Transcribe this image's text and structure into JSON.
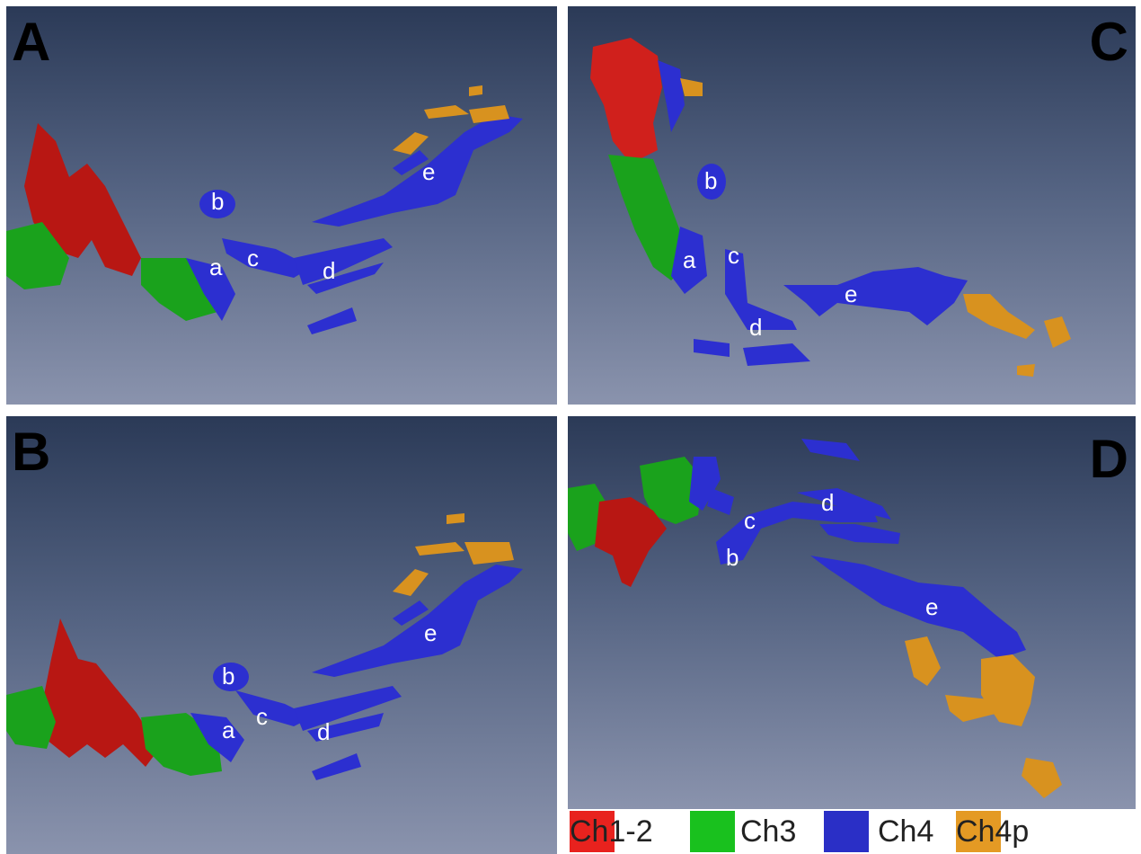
{
  "panels": [
    {
      "id": "A",
      "labels": [
        "a",
        "b",
        "c",
        "d",
        "e"
      ]
    },
    {
      "id": "B",
      "labels": [
        "a",
        "b",
        "c",
        "d",
        "e"
      ]
    },
    {
      "id": "C",
      "labels": [
        "a",
        "b",
        "c",
        "d",
        "e"
      ]
    },
    {
      "id": "D",
      "labels": [
        "b",
        "c",
        "d",
        "e"
      ]
    }
  ],
  "legend": [
    {
      "prefix": "Ch",
      "suffix": "1-2",
      "color": "#e8221e"
    },
    {
      "prefix": "",
      "suffix": "Ch3",
      "color": "#19c11e"
    },
    {
      "prefix": "",
      "suffix": "Ch4",
      "color": "#2a2fc6"
    },
    {
      "prefix": "Ch",
      "suffix": "4p",
      "color": "#e49a24"
    }
  ],
  "colors": {
    "red": "#c21a16",
    "green": "#1aa21c",
    "blue": "#2c2fd0",
    "orange": "#d8921f"
  }
}
